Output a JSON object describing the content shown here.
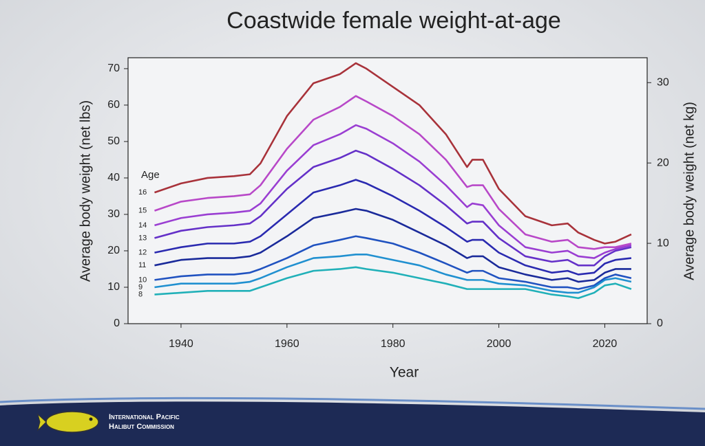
{
  "chart_data": {
    "type": "line",
    "title": "Coastwide female weight-at-age",
    "x_label": "Year",
    "y_label": "Average body weight (net lbs)",
    "y2_label": "Average body weight (net kg)",
    "legend_title": "Age",
    "x": [
      1935,
      1940,
      1945,
      1950,
      1953,
      1955,
      1960,
      1965,
      1970,
      1973,
      1975,
      1980,
      1985,
      1990,
      1994,
      1995,
      1997,
      2000,
      2005,
      2010,
      2013,
      2015,
      2018,
      2020,
      2022,
      2025
    ],
    "series": [
      {
        "name": "16",
        "color": "#a8323a",
        "values": [
          36,
          38.5,
          40,
          40.5,
          41,
          44,
          57,
          66,
          68.5,
          71.5,
          70,
          65,
          60,
          52,
          43,
          45,
          45,
          37,
          29.5,
          27,
          27.5,
          25,
          23,
          22,
          22.5,
          24.5
        ]
      },
      {
        "name": "15",
        "color": "#b848c8",
        "values": [
          31,
          33.5,
          34.5,
          35,
          35.5,
          38,
          48,
          56,
          59.5,
          62.5,
          61,
          57,
          52,
          45,
          37.5,
          38,
          38,
          31.5,
          24.5,
          22.5,
          23,
          21,
          20.5,
          21,
          21,
          22
        ]
      },
      {
        "name": "14",
        "color": "#9a3ed2",
        "values": [
          27,
          29,
          30,
          30.5,
          31,
          33,
          42,
          49,
          52,
          54.5,
          53.5,
          49.5,
          44.5,
          38,
          32,
          33,
          32.5,
          27,
          21,
          19.5,
          20,
          18.5,
          18,
          19.5,
          20.5,
          21.5
        ]
      },
      {
        "name": "13",
        "color": "#6430c8",
        "values": [
          23.5,
          25.5,
          26.5,
          27,
          27.5,
          29.5,
          37,
          43,
          45.5,
          47.5,
          46.5,
          42.5,
          38,
          32.5,
          27.5,
          28,
          28,
          23.5,
          18.5,
          17,
          17.5,
          16,
          16,
          18.5,
          20,
          21
        ]
      },
      {
        "name": "12",
        "color": "#2a2ab0",
        "values": [
          19.5,
          21,
          22,
          22,
          22.5,
          24,
          30,
          36,
          38,
          39.5,
          38.5,
          35,
          31,
          26.5,
          22.5,
          23,
          23,
          19.5,
          16,
          14,
          14.5,
          13.5,
          14,
          16.5,
          17.5,
          18
        ]
      },
      {
        "name": "11",
        "color": "#1a2a9a",
        "values": [
          16,
          17.5,
          18,
          18,
          18.5,
          19.5,
          24,
          29,
          30.5,
          31.5,
          31,
          28.5,
          25,
          21.5,
          18,
          18.5,
          18.5,
          15.5,
          13.5,
          12,
          12.5,
          11.5,
          12,
          14,
          15,
          15
        ]
      },
      {
        "name": "10",
        "color": "#2052c0",
        "values": [
          12,
          13,
          13.5,
          13.5,
          14,
          15,
          18,
          21.5,
          23,
          24,
          23.5,
          22,
          19.5,
          16.5,
          14,
          14.5,
          14.5,
          12.5,
          11.5,
          10,
          10,
          9.5,
          10.5,
          12.5,
          13.5,
          12.5
        ]
      },
      {
        "name": "9",
        "color": "#2090d0",
        "values": [
          10,
          11,
          11,
          11,
          11.5,
          12.5,
          15.5,
          18,
          18.5,
          19,
          19,
          17.5,
          16,
          13.5,
          12,
          12,
          12,
          11,
          10.5,
          9,
          8.5,
          8.5,
          10,
          12,
          12.5,
          11.5
        ]
      },
      {
        "name": "8",
        "color": "#20b0b8",
        "values": [
          8,
          8.5,
          9,
          9,
          9,
          10,
          12.5,
          14.5,
          15,
          15.5,
          15,
          14,
          12.5,
          11,
          9.5,
          9.5,
          9.5,
          9.5,
          9.5,
          8,
          7.5,
          7,
          8.5,
          10.5,
          11,
          9.5
        ]
      }
    ],
    "xlim": [
      1930,
      2028
    ],
    "xticks": [
      1940,
      1960,
      1980,
      2000,
      2020
    ],
    "ylim": [
      0,
      73
    ],
    "yticks": [
      0,
      10,
      20,
      30,
      40,
      50,
      60,
      70
    ],
    "y2lim": [
      0,
      33.1
    ],
    "y2ticks": [
      0,
      10,
      20,
      30
    ]
  },
  "footer": {
    "line1": "International Pacific",
    "line2": "Halibut Commission"
  }
}
